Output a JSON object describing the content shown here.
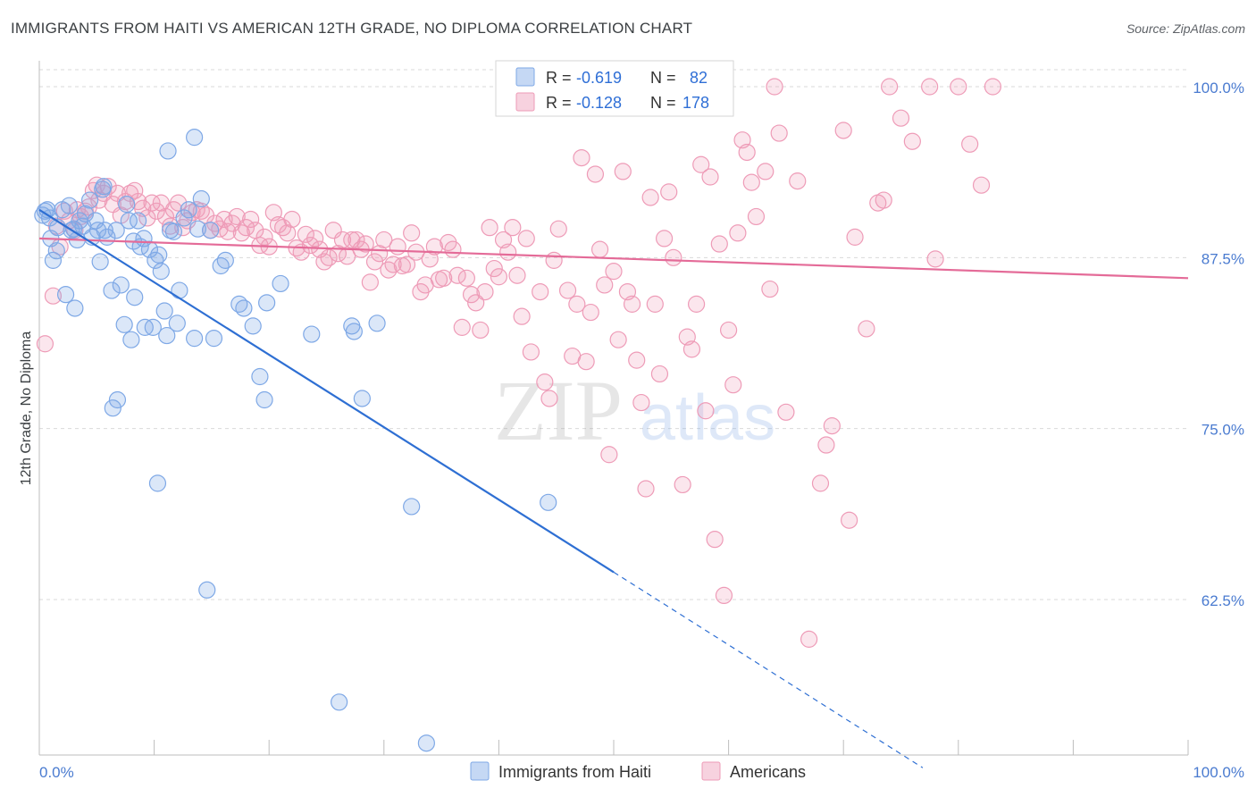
{
  "title": "IMMIGRANTS FROM HAITI VS AMERICAN 12TH GRADE, NO DIPLOMA CORRELATION CHART",
  "source": "Source: ZipAtlas.com",
  "watermark": "ZIPatlas",
  "colors": {
    "blue": "#7ea8e6",
    "blue_fill": "rgba(126,168,230,0.28)",
    "blue_line": "#2e6fd3",
    "pink": "#ee9bb7",
    "pink_fill": "rgba(238,155,183,0.25)",
    "pink_line": "#e46b98",
    "grid": "#d9d9d9",
    "tick_text": "#4a7bd0"
  },
  "legend": {
    "rows": [
      {
        "r_label": "R =",
        "r_value": "-0.619",
        "n_label": "N =",
        "n_value": "82"
      },
      {
        "r_label": "R =",
        "r_value": "-0.128",
        "n_label": "N =",
        "n_value": "178"
      }
    ]
  },
  "chart_data": {
    "type": "scatter",
    "xlabel": "",
    "ylabel": "12th Grade, No Diploma",
    "xlim": [
      0,
      100
    ],
    "ylim": [
      50,
      102
    ],
    "x_tick_labels": [
      "0.0%",
      "100.0%"
    ],
    "y_tick_values": [
      100,
      87.5,
      75,
      62.5
    ],
    "y_tick_labels": [
      "100.0%",
      "87.5%",
      "75.0%",
      "62.5%"
    ],
    "grid": true,
    "legend_position": "top-center",
    "series": [
      {
        "name": "Immigrants from Haiti",
        "trend": {
          "x": [
            0.0,
            50.0
          ],
          "y": [
            91.0,
            64.5
          ],
          "dashed_to": [
            76.9,
            50.2
          ]
        },
        "points": [
          [
            0.3,
            90.6
          ],
          [
            0.5,
            90.9
          ],
          [
            0.7,
            91.0
          ],
          [
            1.0,
            88.9
          ],
          [
            1.2,
            87.3
          ],
          [
            1.5,
            88.0
          ],
          [
            1.6,
            89.7
          ],
          [
            2.3,
            84.8
          ],
          [
            2.6,
            91.3
          ],
          [
            2.8,
            89.5
          ],
          [
            3.1,
            83.8
          ],
          [
            3.3,
            88.8
          ],
          [
            3.5,
            90.2
          ],
          [
            3.8,
            89.8
          ],
          [
            4.0,
            90.7
          ],
          [
            4.4,
            91.7
          ],
          [
            4.9,
            90.2
          ],
          [
            5.1,
            89.5
          ],
          [
            5.3,
            87.2
          ],
          [
            5.5,
            92.5
          ],
          [
            5.7,
            89.5
          ],
          [
            5.9,
            89.0
          ],
          [
            6.3,
            85.1
          ],
          [
            6.4,
            76.5
          ],
          [
            6.7,
            89.5
          ],
          [
            6.8,
            77.1
          ],
          [
            7.1,
            85.5
          ],
          [
            7.4,
            82.6
          ],
          [
            7.6,
            91.4
          ],
          [
            7.8,
            90.2
          ],
          [
            8.0,
            81.5
          ],
          [
            8.2,
            88.7
          ],
          [
            8.3,
            84.6
          ],
          [
            8.6,
            90.2
          ],
          [
            8.8,
            88.3
          ],
          [
            9.1,
            88.9
          ],
          [
            9.2,
            82.4
          ],
          [
            9.6,
            88.1
          ],
          [
            9.9,
            82.4
          ],
          [
            10.1,
            87.3
          ],
          [
            10.3,
            71.0
          ],
          [
            10.4,
            87.7
          ],
          [
            10.6,
            86.5
          ],
          [
            10.9,
            83.6
          ],
          [
            11.1,
            81.8
          ],
          [
            11.4,
            89.5
          ],
          [
            11.7,
            89.4
          ],
          [
            12.0,
            82.7
          ],
          [
            12.2,
            85.1
          ],
          [
            12.6,
            90.4
          ],
          [
            13.0,
            91.0
          ],
          [
            13.5,
            81.6
          ],
          [
            13.8,
            89.6
          ],
          [
            14.1,
            91.8
          ],
          [
            14.6,
            63.2
          ],
          [
            14.9,
            89.5
          ],
          [
            15.2,
            81.6
          ],
          [
            15.8,
            86.9
          ],
          [
            16.2,
            87.3
          ],
          [
            17.4,
            84.1
          ],
          [
            17.8,
            83.8
          ],
          [
            18.6,
            82.5
          ],
          [
            19.2,
            78.8
          ],
          [
            19.6,
            77.1
          ],
          [
            19.8,
            84.2
          ],
          [
            21.0,
            85.6
          ],
          [
            23.7,
            81.9
          ],
          [
            27.2,
            82.5
          ],
          [
            27.4,
            82.1
          ],
          [
            28.1,
            77.2
          ],
          [
            29.4,
            82.7
          ],
          [
            32.4,
            69.3
          ],
          [
            33.7,
            52.0
          ],
          [
            44.3,
            69.6
          ],
          [
            26.1,
            55.0
          ],
          [
            13.5,
            96.3
          ],
          [
            11.2,
            95.3
          ],
          [
            0.9,
            90.4
          ],
          [
            2.0,
            91.0
          ],
          [
            3.0,
            89.6
          ],
          [
            5.6,
            92.7
          ],
          [
            4.6,
            89.0
          ]
        ]
      },
      {
        "name": "Americans",
        "trend": {
          "x": [
            0.0,
            100.0
          ],
          "y": [
            88.9,
            86.0
          ]
        },
        "points": [
          [
            0.5,
            81.2
          ],
          [
            1.2,
            84.7
          ],
          [
            1.5,
            89.8
          ],
          [
            1.8,
            88.3
          ],
          [
            2.2,
            90.9
          ],
          [
            2.6,
            90.2
          ],
          [
            3.1,
            89.5
          ],
          [
            3.3,
            91.0
          ],
          [
            3.6,
            90.5
          ],
          [
            4.0,
            90.9
          ],
          [
            4.3,
            91.2
          ],
          [
            4.7,
            92.4
          ],
          [
            5.0,
            92.8
          ],
          [
            5.2,
            91.7
          ],
          [
            5.6,
            92.2
          ],
          [
            6.0,
            92.7
          ],
          [
            6.4,
            91.4
          ],
          [
            6.8,
            92.2
          ],
          [
            7.1,
            90.6
          ],
          [
            7.5,
            91.6
          ],
          [
            7.9,
            92.2
          ],
          [
            8.3,
            92.4
          ],
          [
            8.6,
            91.6
          ],
          [
            9.0,
            91.1
          ],
          [
            9.4,
            90.4
          ],
          [
            9.8,
            91.5
          ],
          [
            10.2,
            90.9
          ],
          [
            10.6,
            91.5
          ],
          [
            11.0,
            90.5
          ],
          [
            11.4,
            89.8
          ],
          [
            11.7,
            91.0
          ],
          [
            12.1,
            91.5
          ],
          [
            12.5,
            89.7
          ],
          [
            12.9,
            90.2
          ],
          [
            13.3,
            90.8
          ],
          [
            13.7,
            91.0
          ],
          [
            14.1,
            90.9
          ],
          [
            14.5,
            90.6
          ],
          [
            14.9,
            89.5
          ],
          [
            15.3,
            90.0
          ],
          [
            15.7,
            89.6
          ],
          [
            16.1,
            90.3
          ],
          [
            16.4,
            89.4
          ],
          [
            16.8,
            90.0
          ],
          [
            17.2,
            90.5
          ],
          [
            17.6,
            89.3
          ],
          [
            18.0,
            89.7
          ],
          [
            18.4,
            90.3
          ],
          [
            18.8,
            89.5
          ],
          [
            19.2,
            88.4
          ],
          [
            19.6,
            89.0
          ],
          [
            20.0,
            88.3
          ],
          [
            20.4,
            90.8
          ],
          [
            20.8,
            89.9
          ],
          [
            21.2,
            89.7
          ],
          [
            21.6,
            89.3
          ],
          [
            22.0,
            90.3
          ],
          [
            22.4,
            88.2
          ],
          [
            22.8,
            87.9
          ],
          [
            23.2,
            89.2
          ],
          [
            23.6,
            88.4
          ],
          [
            24.0,
            88.9
          ],
          [
            24.4,
            88.1
          ],
          [
            24.8,
            87.2
          ],
          [
            25.2,
            87.5
          ],
          [
            25.6,
            89.5
          ],
          [
            26.0,
            87.8
          ],
          [
            26.4,
            88.8
          ],
          [
            26.8,
            87.6
          ],
          [
            27.2,
            88.8
          ],
          [
            27.6,
            88.8
          ],
          [
            28.0,
            88.1
          ],
          [
            28.4,
            88.5
          ],
          [
            28.8,
            85.7
          ],
          [
            29.2,
            87.2
          ],
          [
            29.6,
            87.8
          ],
          [
            30.0,
            88.8
          ],
          [
            30.4,
            86.6
          ],
          [
            30.8,
            87.0
          ],
          [
            31.2,
            88.3
          ],
          [
            31.6,
            86.9
          ],
          [
            32.0,
            87.0
          ],
          [
            32.4,
            89.3
          ],
          [
            32.8,
            87.9
          ],
          [
            33.2,
            85.0
          ],
          [
            33.6,
            85.5
          ],
          [
            34.0,
            87.4
          ],
          [
            34.4,
            88.3
          ],
          [
            34.8,
            85.9
          ],
          [
            35.2,
            86.0
          ],
          [
            35.6,
            88.6
          ],
          [
            36.0,
            88.1
          ],
          [
            36.4,
            86.2
          ],
          [
            36.8,
            82.4
          ],
          [
            37.2,
            86.0
          ],
          [
            37.6,
            84.8
          ],
          [
            38.0,
            84.2
          ],
          [
            38.4,
            82.2
          ],
          [
            38.8,
            85.0
          ],
          [
            39.2,
            89.7
          ],
          [
            39.6,
            86.7
          ],
          [
            40.0,
            86.1
          ],
          [
            40.4,
            88.8
          ],
          [
            40.8,
            87.9
          ],
          [
            41.2,
            89.7
          ],
          [
            41.6,
            86.2
          ],
          [
            42.0,
            83.2
          ],
          [
            42.4,
            88.9
          ],
          [
            42.8,
            80.6
          ],
          [
            43.6,
            85.0
          ],
          [
            44.0,
            78.4
          ],
          [
            44.4,
            77.2
          ],
          [
            44.8,
            87.3
          ],
          [
            45.2,
            89.6
          ],
          [
            46.0,
            85.1
          ],
          [
            46.4,
            80.3
          ],
          [
            46.8,
            84.1
          ],
          [
            47.2,
            94.8
          ],
          [
            47.6,
            79.9
          ],
          [
            48.0,
            83.5
          ],
          [
            48.4,
            93.6
          ],
          [
            48.8,
            88.1
          ],
          [
            49.2,
            85.5
          ],
          [
            49.6,
            73.1
          ],
          [
            50.0,
            86.5
          ],
          [
            50.4,
            81.5
          ],
          [
            50.8,
            93.8
          ],
          [
            51.2,
            85.0
          ],
          [
            51.6,
            84.1
          ],
          [
            52.0,
            80.0
          ],
          [
            52.4,
            76.9
          ],
          [
            52.8,
            70.6
          ],
          [
            53.2,
            91.9
          ],
          [
            53.6,
            84.1
          ],
          [
            54.0,
            79.0
          ],
          [
            54.4,
            88.9
          ],
          [
            54.8,
            92.3
          ],
          [
            55.2,
            87.5
          ],
          [
            56.0,
            70.9
          ],
          [
            56.4,
            81.7
          ],
          [
            56.8,
            80.8
          ],
          [
            57.2,
            84.1
          ],
          [
            57.6,
            94.3
          ],
          [
            58.0,
            76.3
          ],
          [
            58.4,
            93.4
          ],
          [
            58.8,
            66.9
          ],
          [
            59.2,
            88.5
          ],
          [
            59.6,
            62.8
          ],
          [
            60.0,
            82.2
          ],
          [
            60.4,
            78.2
          ],
          [
            60.8,
            89.3
          ],
          [
            61.2,
            96.1
          ],
          [
            61.6,
            95.2
          ],
          [
            62.0,
            93.0
          ],
          [
            62.4,
            90.5
          ],
          [
            63.2,
            93.8
          ],
          [
            63.6,
            85.2
          ],
          [
            64.0,
            100.0
          ],
          [
            64.4,
            96.6
          ],
          [
            65.0,
            76.2
          ],
          [
            66.0,
            93.1
          ],
          [
            67.0,
            59.6
          ],
          [
            68.0,
            71.0
          ],
          [
            68.5,
            73.8
          ],
          [
            69.0,
            75.2
          ],
          [
            70.0,
            96.8
          ],
          [
            70.5,
            68.3
          ],
          [
            71.0,
            89.0
          ],
          [
            72.0,
            82.3
          ],
          [
            73.0,
            91.5
          ],
          [
            73.5,
            91.7
          ],
          [
            74.0,
            100.0
          ],
          [
            75.0,
            97.7
          ],
          [
            76.0,
            96.0
          ],
          [
            77.5,
            100.0
          ],
          [
            78.0,
            87.4
          ],
          [
            80.0,
            100.0
          ],
          [
            81.0,
            95.8
          ],
          [
            82.0,
            92.8
          ],
          [
            83.0,
            100.0
          ]
        ]
      }
    ]
  },
  "bottom_legend": {
    "items": [
      {
        "label": "Immigrants from Haiti"
      },
      {
        "label": "Americans"
      }
    ]
  }
}
